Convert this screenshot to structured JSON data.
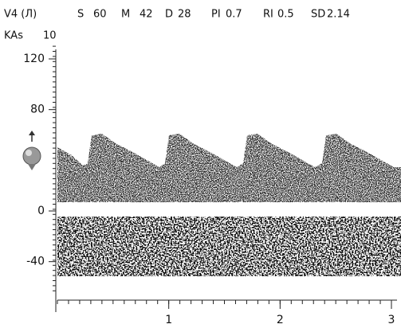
{
  "vessel": "V4 (Л)",
  "measurements": [
    {
      "name": "S",
      "value": 60
    },
    {
      "name": "M",
      "value": 42
    },
    {
      "name": "D",
      "value": 28
    },
    {
      "name": "PI",
      "value": 0.7
    },
    {
      "name": "RI",
      "value": 0.5
    },
    {
      "name": "SD",
      "value": 2.14
    }
  ],
  "gain": {
    "name": "KAs",
    "value": 10
  },
  "spectrogram": {
    "ylim": [
      -65,
      130
    ],
    "yticks": [
      120,
      80,
      0,
      -40
    ],
    "xlim": [
      0,
      3
    ],
    "xticks": [
      1,
      2,
      3
    ]
  }
}
